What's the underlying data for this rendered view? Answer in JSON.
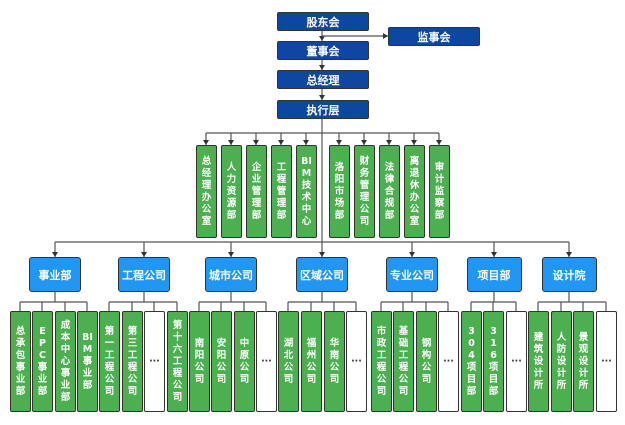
{
  "top": {
    "shareholders": "股东会",
    "supervisors": "监事会",
    "board": "董事会",
    "general_manager": "总经理",
    "executive": "执行层"
  },
  "departments": [
    "总经理办公室",
    "人力资源部",
    "企业管理部",
    "工程管理部",
    "BIM技术中心",
    "洛阳市场部",
    "财务管理公司",
    "法律合规部",
    "离退休办公室",
    "审计监察部"
  ],
  "divisions": [
    {
      "label": "事业部",
      "children": [
        "总承包事业部",
        "EPC事业部",
        "成本中心事业部",
        "BIM事业部"
      ]
    },
    {
      "label": "工程公司",
      "children": [
        "第一工程公司",
        "第三工程公司",
        "···",
        "第十六工程公司"
      ]
    },
    {
      "label": "城市公司",
      "children": [
        "南阳公司",
        "安阳公司",
        "中原公司",
        "···"
      ]
    },
    {
      "label": "区域公司",
      "children": [
        "湖北公司",
        "福州公司",
        "华南公司",
        "···"
      ]
    },
    {
      "label": "专业公司",
      "children": [
        "市政工程公司",
        "基础工程公司",
        "钢构公司",
        "···"
      ]
    },
    {
      "label": "项目部",
      "children": [
        "304项目部",
        "316项目部",
        "···"
      ]
    },
    {
      "label": "设计院",
      "children": [
        "建筑设计所",
        "人防设计所",
        "景观设计所",
        "···"
      ]
    }
  ],
  "colors": {
    "top": "#0d47a1",
    "division": "#2196f3",
    "unit": "#4caf50",
    "line": "#555555"
  }
}
